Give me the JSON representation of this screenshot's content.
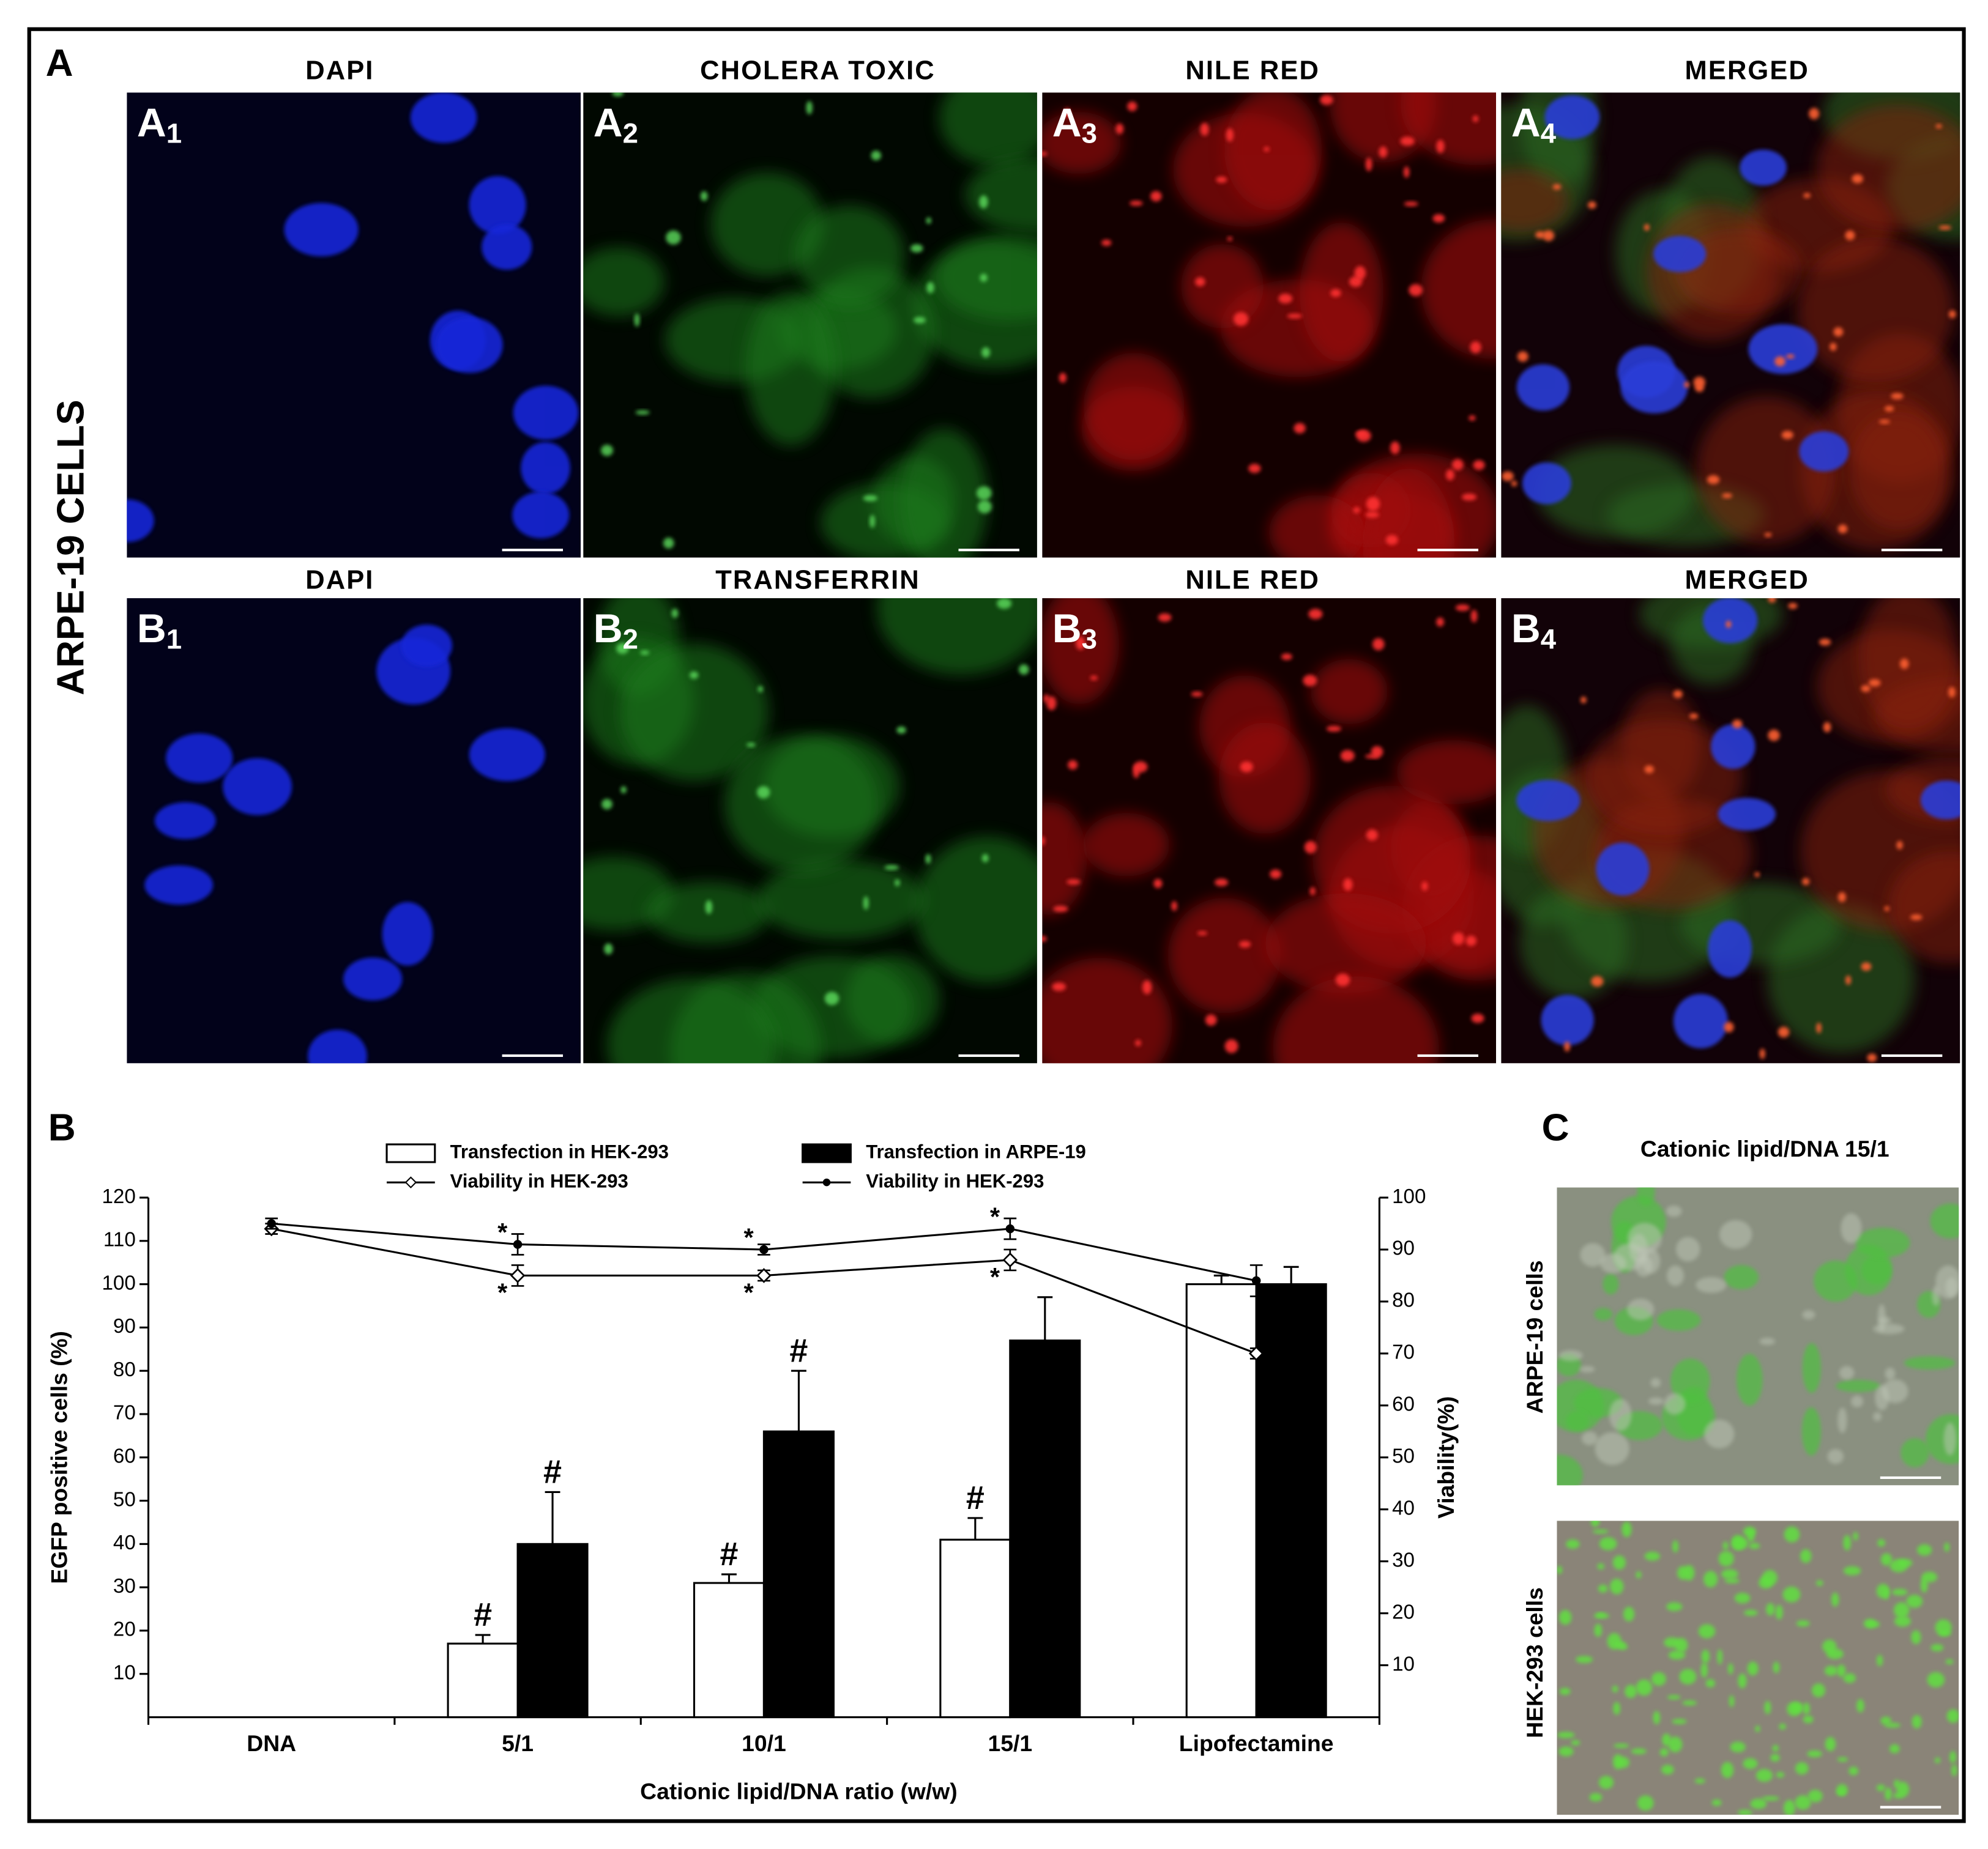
{
  "panels": {
    "labels": [
      "A",
      "B",
      "C"
    ],
    "row_label": "ARPE-19 CELLS",
    "row_a": {
      "titles": [
        "DAPI",
        "CHOLERA TOXIC",
        "NILE RED",
        "MERGED"
      ],
      "tags": [
        {
          "letter": "A",
          "sub": "1"
        },
        {
          "letter": "A",
          "sub": "2"
        },
        {
          "letter": "A",
          "sub": "3"
        },
        {
          "letter": "A",
          "sub": "4"
        }
      ]
    },
    "row_b": {
      "titles": [
        "DAPI",
        "TRANSFERRIN",
        "NILE RED",
        "MERGED"
      ],
      "tags": [
        {
          "letter": "B",
          "sub": "1"
        },
        {
          "letter": "B",
          "sub": "2"
        },
        {
          "letter": "B",
          "sub": "3"
        },
        {
          "letter": "B",
          "sub": "4"
        }
      ]
    },
    "panel_c": {
      "title": "Cationic lipid/DNA 15/1",
      "rows": [
        "ARPE-19 cells",
        "HEK-293 cells"
      ]
    }
  },
  "chart_data": {
    "type": "bar",
    "x_label": "Cationic lipid/DNA ratio (w/w)",
    "y_label": "EGFP positive cells (%)",
    "y2_label": "Viability(%)",
    "categories": [
      "DNA",
      "5/1",
      "10/1",
      "15/1",
      "Lipofectamine"
    ],
    "ylim": [
      0,
      120
    ],
    "yticks": [
      10,
      20,
      30,
      40,
      50,
      60,
      70,
      80,
      90,
      100,
      110,
      120
    ],
    "y2lim": [
      0,
      100
    ],
    "y2ticks": [
      10,
      20,
      30,
      40,
      50,
      60,
      70,
      80,
      90,
      100
    ],
    "series": [
      {
        "name": "Transfection in HEK-293",
        "color": "#ffffff",
        "values": [
          null,
          17,
          31,
          41,
          100
        ],
        "errors": [
          null,
          2,
          2,
          5,
          2
        ],
        "marks": [
          null,
          "#",
          "#",
          "#",
          null
        ]
      },
      {
        "name": "Transfection in ARPE-19",
        "color": "#000000",
        "values": [
          null,
          40,
          66,
          87,
          100
        ],
        "errors": [
          null,
          12,
          14,
          10,
          4
        ],
        "marks": [
          null,
          "#",
          "#",
          null,
          null
        ]
      },
      {
        "name": "Viability in HEK-293",
        "color": "#000000",
        "axis": "y2",
        "marker": "open",
        "values": [
          94,
          85,
          85,
          88,
          70
        ],
        "errors": [
          1,
          2,
          1,
          2,
          1
        ],
        "marks": [
          null,
          "*",
          "*",
          "*",
          null
        ]
      },
      {
        "name": "Viability in HEK-293",
        "color": "#000000",
        "axis": "y2",
        "marker": "filled",
        "values": [
          95,
          91,
          90,
          94,
          84
        ],
        "errors": [
          1,
          2,
          1,
          2,
          3
        ],
        "marks": [
          null,
          "*",
          "*",
          "*",
          null
        ]
      }
    ]
  }
}
